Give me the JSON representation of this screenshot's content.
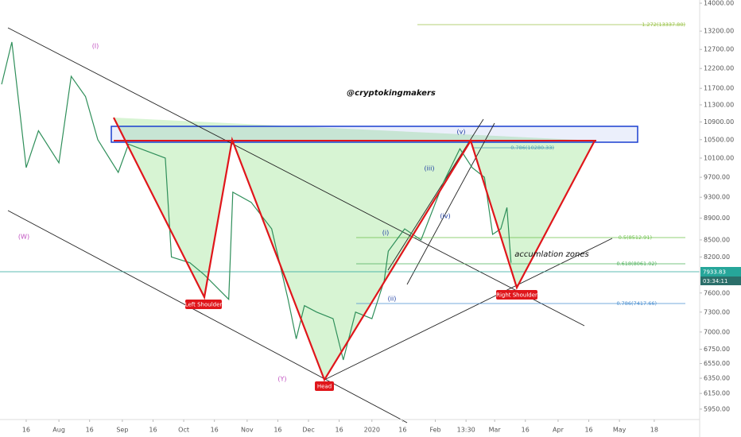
{
  "chart_data": {
    "type": "line",
    "log_scale": true,
    "x": [
      3,
      8,
      15,
      21,
      31,
      37,
      44,
      50,
      60,
      65,
      71,
      83,
      86,
      95,
      102,
      114,
      116,
      125,
      135,
      143,
      147,
      151,
      157,
      165,
      170,
      176,
      184,
      190,
      192,
      200,
      208,
      219,
      227,
      233,
      239,
      243,
      247,
      250,
      252
    ],
    "series": [
      {
        "color": "#2f8f5a",
        "values": [
          11800,
          12900,
          9900,
          10700,
          10000,
          12000,
          11500,
          10500,
          9800,
          10400,
          10300,
          10100,
          8200,
          8100,
          7900,
          7500,
          9400,
          9200,
          8700,
          7500,
          6900,
          7400,
          7300,
          7200,
          6600,
          7300,
          7200,
          7800,
          8300,
          8700,
          8500,
          9600,
          10300,
          9900,
          9700,
          8600,
          8700,
          9100,
          8100
        ]
      }
    ],
    "xlim": [
      2.2,
      344.2
    ],
    "xticks": [
      {
        "value": 15,
        "label": "16"
      },
      {
        "value": 31,
        "label": "Aug"
      },
      {
        "value": 46,
        "label": "16"
      },
      {
        "value": 62,
        "label": "Sep"
      },
      {
        "value": 77,
        "label": "16"
      },
      {
        "value": 92,
        "label": "Oct"
      },
      {
        "value": 107,
        "label": "16"
      },
      {
        "value": 123,
        "label": "Nov"
      },
      {
        "value": 138,
        "label": "16"
      },
      {
        "value": 153,
        "label": "Dec"
      },
      {
        "value": 168,
        "label": "16"
      },
      {
        "value": 184,
        "label": "2020"
      },
      {
        "value": 199,
        "label": "16"
      },
      {
        "value": 215,
        "label": "Feb"
      },
      {
        "value": 230,
        "label": "13:30"
      },
      {
        "value": 244,
        "label": "Mar"
      },
      {
        "value": 259,
        "label": "16"
      },
      {
        "value": 275,
        "label": "Apr"
      },
      {
        "value": 290,
        "label": "16"
      },
      {
        "value": 305,
        "label": "May"
      },
      {
        "value": 322,
        "label": "18"
      }
    ],
    "ylim": [
      5850,
      14095
    ],
    "yticks": [
      {
        "value": 14000,
        "label": "14000.00"
      },
      {
        "value": 13200,
        "label": "13200.00"
      },
      {
        "value": 12700,
        "label": "12700.00"
      },
      {
        "value": 12200,
        "label": "12200.00"
      },
      {
        "value": 11700,
        "label": "11700.00"
      },
      {
        "value": 11300,
        "label": "11300.00"
      },
      {
        "value": 10900,
        "label": "10900.00"
      },
      {
        "value": 10500,
        "label": "10500.00"
      },
      {
        "value": 10100,
        "label": "10100.00"
      },
      {
        "value": 9700,
        "label": "9700.00"
      },
      {
        "value": 9300,
        "label": "9300.00"
      },
      {
        "value": 8900,
        "label": "8900.00"
      },
      {
        "value": 8500,
        "label": "8500.00"
      },
      {
        "value": 8200,
        "label": "8200.00"
      },
      {
        "value": 7600,
        "label": "7600.00"
      },
      {
        "value": 7300,
        "label": "7300.00"
      },
      {
        "value": 7000,
        "label": "7000.00"
      },
      {
        "value": 6750,
        "label": "6750.00"
      },
      {
        "value": 6550,
        "label": "6550.00"
      },
      {
        "value": 6350,
        "label": "6350.00"
      },
      {
        "value": 6150,
        "label": "6150.00"
      },
      {
        "value": 5950,
        "label": "5950.00"
      }
    ],
    "last_price": "7933.83",
    "countdown": "03:34:11",
    "watermark": "@cryptokingmakers",
    "pattern_labels": [
      "Left Shoulder",
      "Head",
      "Right Shoulder"
    ],
    "zone_label": "accumlation zones",
    "wave_labels": [
      "(I)",
      "(W)",
      "(Y)",
      "(i)",
      "(ii)",
      "(iii)",
      "(iv)",
      "(v)"
    ],
    "fib_labels": [
      "1.272(13337.80)",
      "0.786(10280.33)",
      "0.5(8512.91)",
      "0.618(8061.02)",
      "0.786(7417.66)"
    ]
  }
}
